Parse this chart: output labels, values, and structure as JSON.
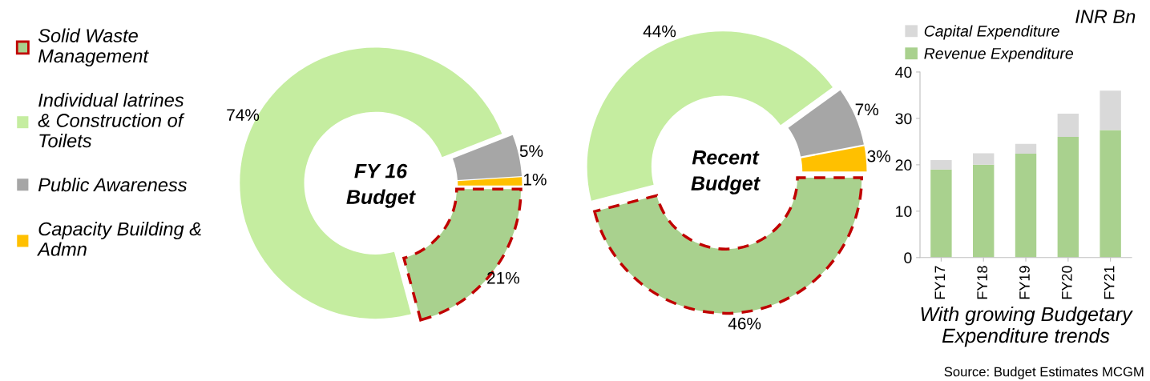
{
  "chart_data": [
    {
      "type": "donut",
      "title": "FY 16 Budget",
      "categories": [
        "Solid Waste Management",
        "Individual latrines & Construction of Toilets",
        "Public Awareness",
        "Capacity Building & Admn"
      ],
      "values": [
        21,
        74,
        5,
        1
      ],
      "colors": [
        "#a9d18e",
        "#c5eda0",
        "#a6a6a6",
        "#ffc000"
      ],
      "value_labels": [
        "21%",
        "74%",
        "5%",
        "1%"
      ],
      "legend": "left"
    },
    {
      "type": "donut",
      "title": "Recent Budget",
      "categories": [
        null,
        null,
        null,
        null
      ],
      "values": [
        46,
        44,
        7,
        3
      ],
      "colors": [
        "#a9d18e",
        "#c5eda0",
        "#a6a6a6",
        "#ffc000"
      ],
      "value_labels": [
        "46%",
        "44%",
        "7%",
        "3%"
      ]
    },
    {
      "type": "bar",
      "stacked": true,
      "categories": [
        "FY17",
        "FY18",
        "FY19",
        "FY20",
        "FY21"
      ],
      "series": [
        {
          "name": "Revenue Expenditure",
          "color": "#a9d18e",
          "values": [
            19,
            20,
            22.4,
            26,
            27.5
          ]
        },
        {
          "name": "Capital Expenditure",
          "color": "#d9d9d9",
          "values": [
            2,
            2.5,
            2.1,
            5,
            8.5
          ]
        }
      ],
      "ylabel": "INR Bn",
      "xlabel": "With growing Budgetary Expenditure trends",
      "ylim": [
        0,
        40
      ],
      "yticks": [
        0,
        10,
        20,
        30,
        40
      ],
      "legend": "top",
      "grid": false,
      "annotations": [
        "Source: Budget Estimates MCGM"
      ]
    }
  ]
}
